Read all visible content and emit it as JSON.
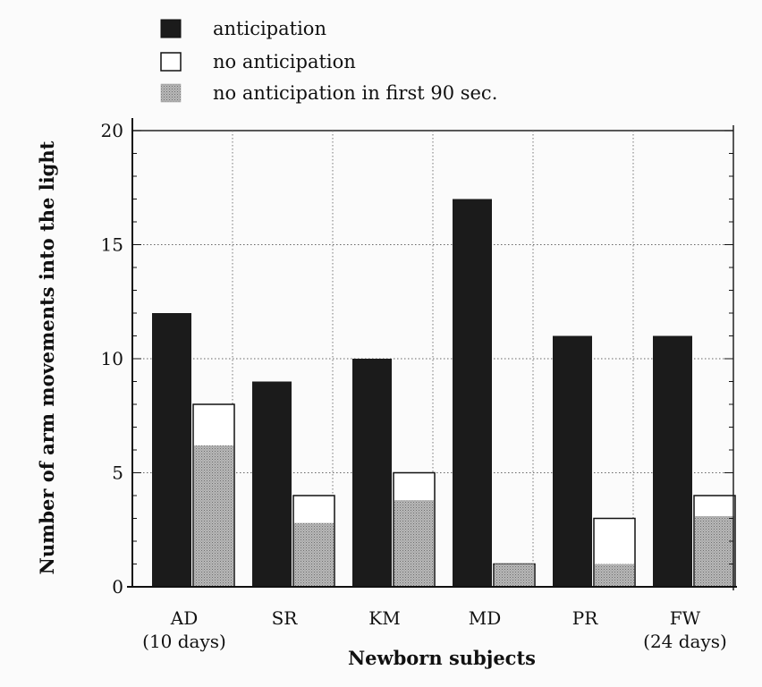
{
  "chart_data": {
    "type": "bar",
    "xlabel": "Newborn subjects",
    "ylabel": "Number of arm movements into the light",
    "ylim": [
      0,
      20
    ],
    "yticks": [
      0,
      5,
      10,
      15,
      20
    ],
    "grid": true,
    "legend_position": "top-left",
    "categories": [
      {
        "label": "AD",
        "sublabel": "(10 days)"
      },
      {
        "label": "SR",
        "sublabel": ""
      },
      {
        "label": "KM",
        "sublabel": ""
      },
      {
        "label": "MD",
        "sublabel": ""
      },
      {
        "label": "PR",
        "sublabel": ""
      },
      {
        "label": "FW",
        "sublabel": "(24 days)"
      }
    ],
    "series": [
      {
        "name": "anticipation",
        "fill": "solid-dark",
        "values": [
          12,
          9,
          10,
          17,
          11,
          11
        ]
      },
      {
        "name": "no anticipation",
        "fill": "open",
        "values": [
          8,
          4,
          5,
          1,
          3,
          4
        ]
      },
      {
        "name": "no anticipation in first 90 sec.",
        "fill": "stippled-grey",
        "values": [
          6.2,
          2.8,
          3.8,
          1,
          1,
          3.1
        ]
      }
    ],
    "colors": {
      "anticipation": "#1b1b1b",
      "no_anticipation": "#ffffff",
      "first_90_sec": "#a9a9a9",
      "axis": "#111111",
      "grid": "#777777"
    }
  }
}
